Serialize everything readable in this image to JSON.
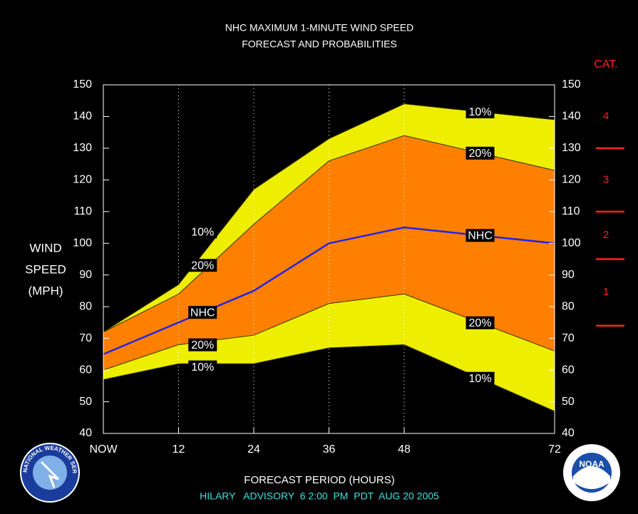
{
  "chart_data": {
    "type": "band-line",
    "title": [
      "NHC MAXIMUM 1-MINUTE WIND SPEED",
      "FORECAST AND PROBABILITIES"
    ],
    "y_label": [
      "WIND",
      "SPEED",
      "(MPH)"
    ],
    "x_label": "FORECAST PERIOD (HOURS)",
    "footer": "HILARY   ADVISORY  6 2:00  PM  PDT  AUG 20 2005",
    "x": [
      0,
      12,
      24,
      36,
      48,
      72
    ],
    "xlim": [
      0,
      72
    ],
    "xticks": [
      {
        "value": 0,
        "label": "NOW"
      },
      12,
      24,
      36,
      48,
      72
    ],
    "ylim": [
      40,
      150
    ],
    "yticks": [
      40,
      50,
      60,
      70,
      80,
      90,
      100,
      110,
      120,
      130,
      140,
      150
    ],
    "grid": true,
    "series": [
      {
        "name": "10%",
        "color": "#333300",
        "values": [
          72,
          87,
          117,
          133,
          144,
          139
        ]
      },
      {
        "name": "20%",
        "color": "#333300",
        "values": [
          72,
          84,
          106,
          126,
          134,
          123
        ]
      },
      {
        "name": "NHC",
        "color": "#2424e6",
        "values": [
          65,
          75,
          85,
          100,
          105,
          100
        ]
      },
      {
        "name": "20%",
        "color": "#333300",
        "values": [
          60,
          68,
          71,
          81,
          84,
          66
        ]
      },
      {
        "name": "10%",
        "color": "#333300",
        "values": [
          57,
          62,
          62,
          67,
          68,
          47
        ]
      }
    ],
    "bands": [
      {
        "between": [
          0,
          4
        ],
        "color": "#eeee00"
      },
      {
        "between": [
          1,
          3
        ],
        "color": "#ff8000"
      }
    ],
    "category_scale": {
      "title": "CAT.",
      "labels": [
        "1",
        "2",
        "3",
        "4"
      ],
      "thresholds": [
        74,
        95,
        110,
        130
      ],
      "color": "#ff2020"
    },
    "logos": {
      "left": "NATIONAL WEATHER SERVICE",
      "right": "NOAA"
    }
  }
}
